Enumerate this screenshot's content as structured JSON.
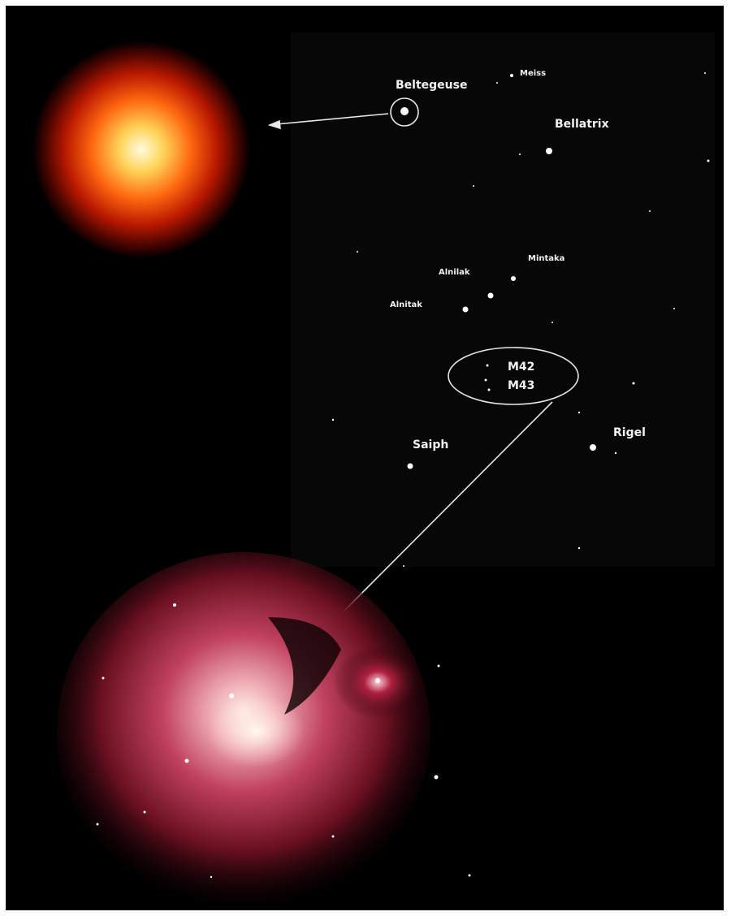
{
  "labels": [
    "Meiss",
    "Beltegeuse",
    "Bellatrix",
    "Mintaka",
    "Alnilak",
    "Alnitak",
    "M42",
    "M43",
    "Saiph",
    "Rigel"
  ]
}
